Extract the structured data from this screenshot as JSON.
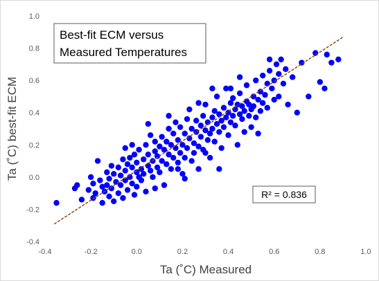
{
  "chart_data": {
    "type": "scatter",
    "title": "Best-fit ECM versus Measured Temperatures",
    "title_lines": [
      "Best-fit ECM versus",
      "Measured Temperatures"
    ],
    "xlabel": "Ta (˚C) Measured",
    "ylabel": "Ta (˚C) best-fit ECM",
    "xlim": [
      -0.4,
      1.0
    ],
    "ylim": [
      -0.4,
      1.0
    ],
    "x_ticks": [
      "-0.4",
      "-0.2",
      "0.0",
      "0.2",
      "0.4",
      "0.6",
      "0.8",
      "1.0"
    ],
    "y_ticks": [
      "-0.4",
      "-0.2",
      "0.0",
      "0.2",
      "0.4",
      "0.6",
      "0.8",
      "1.0"
    ],
    "grid": false,
    "trendline": {
      "slope": 0.92,
      "intercept": 0.04,
      "x_range": [
        -0.36,
        0.9
      ],
      "style": "dashed",
      "color": "#8B4513"
    },
    "r_squared_label": "R² = 0.836",
    "marker_color": "#0000FF",
    "points": [
      [
        -0.35,
        -0.16
      ],
      [
        -0.27,
        -0.07
      ],
      [
        -0.26,
        -0.05
      ],
      [
        -0.24,
        -0.14
      ],
      [
        -0.21,
        -0.08
      ],
      [
        -0.2,
        0.0
      ],
      [
        -0.19,
        -0.04
      ],
      [
        -0.19,
        -0.13
      ],
      [
        -0.18,
        -0.1
      ],
      [
        -0.17,
        0.1
      ],
      [
        -0.16,
        -0.02
      ],
      [
        -0.15,
        -0.06
      ],
      [
        -0.15,
        -0.16
      ],
      [
        -0.14,
        -0.09
      ],
      [
        -0.13,
        0.03
      ],
      [
        -0.13,
        -0.05
      ],
      [
        -0.12,
        -0.12
      ],
      [
        -0.12,
        -0.01
      ],
      [
        -0.11,
        0.07
      ],
      [
        -0.11,
        -0.07
      ],
      [
        -0.1,
        -0.15
      ],
      [
        -0.1,
        0.02
      ],
      [
        -0.09,
        -0.03
      ],
      [
        -0.08,
        0.06
      ],
      [
        -0.08,
        -0.1
      ],
      [
        -0.07,
        0.01
      ],
      [
        -0.07,
        -0.05
      ],
      [
        -0.06,
        0.11
      ],
      [
        -0.06,
        -0.13
      ],
      [
        -0.05,
        0.04
      ],
      [
        -0.05,
        -0.02
      ],
      [
        -0.04,
        0.08
      ],
      [
        -0.04,
        -0.08
      ],
      [
        -0.03,
        0.0
      ],
      [
        -0.03,
        0.12
      ],
      [
        -0.02,
        -0.04
      ],
      [
        -0.02,
        0.06
      ],
      [
        -0.01,
        0.14
      ],
      [
        -0.01,
        -0.11
      ],
      [
        0.0,
        0.03
      ],
      [
        0.0,
        0.09
      ],
      [
        0.0,
        -0.06
      ],
      [
        0.01,
        0.0
      ],
      [
        0.01,
        0.17
      ],
      [
        0.02,
        0.05
      ],
      [
        0.02,
        -0.02
      ],
      [
        0.03,
        0.11
      ],
      [
        0.03,
        0.02
      ],
      [
        0.04,
        0.2
      ],
      [
        0.04,
        -0.09
      ],
      [
        0.05,
        0.07
      ],
      [
        0.05,
        0.14
      ],
      [
        0.06,
        0.04
      ],
      [
        0.06,
        0.26
      ],
      [
        0.07,
        0.1
      ],
      [
        0.07,
        0.0
      ],
      [
        0.08,
        0.16
      ],
      [
        0.08,
        0.22
      ],
      [
        0.09,
        0.06
      ],
      [
        0.09,
        0.13
      ],
      [
        0.1,
        0.19
      ],
      [
        0.1,
        0.03
      ],
      [
        0.11,
        0.25
      ],
      [
        0.11,
        0.1
      ],
      [
        0.12,
        0.17
      ],
      [
        0.12,
        -0.05
      ],
      [
        0.13,
        0.22
      ],
      [
        0.13,
        0.08
      ],
      [
        0.14,
        0.14
      ],
      [
        0.14,
        0.3
      ],
      [
        0.15,
        0.2
      ],
      [
        0.15,
        0.05
      ],
      [
        0.16,
        0.12
      ],
      [
        0.16,
        0.27
      ],
      [
        0.17,
        0.18
      ],
      [
        0.17,
        0.34
      ],
      [
        0.18,
        0.09
      ],
      [
        0.18,
        0.23
      ],
      [
        0.19,
        0.15
      ],
      [
        0.19,
        0.31
      ],
      [
        0.2,
        0.2
      ],
      [
        0.2,
        0.02
      ],
      [
        0.21,
        0.27
      ],
      [
        0.21,
        0.12
      ],
      [
        0.22,
        0.36
      ],
      [
        0.22,
        0.18
      ],
      [
        0.23,
        0.24
      ],
      [
        0.23,
        0.42
      ],
      [
        0.24,
        0.1
      ],
      [
        0.24,
        0.3
      ],
      [
        0.25,
        0.21
      ],
      [
        0.25,
        0.15
      ],
      [
        0.26,
        0.28
      ],
      [
        0.26,
        0.35
      ],
      [
        0.27,
        0.19
      ],
      [
        0.27,
        0.05
      ],
      [
        0.28,
        0.32
      ],
      [
        0.28,
        0.25
      ],
      [
        0.29,
        0.38
      ],
      [
        0.29,
        0.17
      ],
      [
        0.3,
        0.29
      ],
      [
        0.3,
        0.45
      ],
      [
        0.31,
        0.23
      ],
      [
        0.31,
        0.34
      ],
      [
        0.32,
        0.27
      ],
      [
        0.32,
        0.12
      ],
      [
        0.33,
        0.37
      ],
      [
        0.33,
        0.3
      ],
      [
        0.34,
        0.41
      ],
      [
        0.34,
        0.22
      ],
      [
        0.35,
        0.33
      ],
      [
        0.35,
        0.5
      ],
      [
        0.36,
        0.28
      ],
      [
        0.36,
        0.39
      ],
      [
        0.37,
        0.35
      ],
      [
        0.37,
        0.18
      ],
      [
        0.38,
        0.43
      ],
      [
        0.38,
        0.31
      ],
      [
        0.39,
        0.37
      ],
      [
        0.39,
        0.55
      ],
      [
        0.4,
        0.4
      ],
      [
        0.4,
        0.26
      ],
      [
        0.41,
        0.46
      ],
      [
        0.41,
        0.34
      ],
      [
        0.42,
        0.38
      ],
      [
        0.42,
        0.49
      ],
      [
        0.43,
        0.32
      ],
      [
        0.43,
        0.42
      ],
      [
        0.44,
        0.45
      ],
      [
        0.44,
        0.2
      ],
      [
        0.45,
        0.39
      ],
      [
        0.45,
        0.52
      ],
      [
        0.46,
        0.36
      ],
      [
        0.46,
        0.44
      ],
      [
        0.47,
        0.41
      ],
      [
        0.47,
        0.28
      ],
      [
        0.48,
        0.47
      ],
      [
        0.48,
        0.57
      ],
      [
        0.49,
        0.38
      ],
      [
        0.49,
        0.45
      ],
      [
        0.5,
        0.42
      ],
      [
        0.5,
        0.31
      ],
      [
        0.51,
        0.5
      ],
      [
        0.51,
        0.44
      ],
      [
        0.52,
        0.6
      ],
      [
        0.52,
        0.37
      ],
      [
        0.53,
        0.48
      ],
      [
        0.54,
        0.53
      ],
      [
        0.54,
        0.41
      ],
      [
        0.55,
        0.63
      ],
      [
        0.55,
        0.46
      ],
      [
        0.56,
        0.51
      ],
      [
        0.57,
        0.58
      ],
      [
        0.57,
        0.43
      ],
      [
        0.58,
        0.66
      ],
      [
        0.59,
        0.55
      ],
      [
        0.6,
        0.6
      ],
      [
        0.6,
        0.48
      ],
      [
        0.61,
        0.7
      ],
      [
        0.62,
        0.64
      ],
      [
        0.63,
        0.73
      ],
      [
        0.64,
        0.58
      ],
      [
        0.65,
        0.67
      ],
      [
        0.66,
        0.45
      ],
      [
        0.68,
        0.62
      ],
      [
        0.7,
        0.4
      ],
      [
        0.72,
        0.71
      ],
      [
        0.75,
        0.5
      ],
      [
        0.8,
        0.59
      ],
      [
        0.82,
        0.55
      ],
      [
        0.83,
        0.76
      ],
      [
        0.85,
        0.71
      ],
      [
        0.88,
        0.73
      ],
      [
        0.78,
        0.77
      ],
      [
        0.41,
        0.55
      ],
      [
        0.36,
        0.05
      ],
      [
        0.3,
        0.15
      ],
      [
        0.18,
        0.05
      ],
      [
        0.05,
        0.33
      ],
      [
        -0.05,
        0.18
      ],
      [
        0.14,
        0.38
      ],
      [
        0.27,
        0.46
      ],
      [
        0.45,
        0.62
      ],
      [
        0.58,
        0.73
      ],
      [
        0.62,
        0.5
      ],
      [
        0.53,
        0.27
      ],
      [
        0.21,
        -0.01
      ],
      [
        0.08,
        -0.07
      ],
      [
        -0.02,
        0.2
      ],
      [
        0.33,
        0.55
      ]
    ]
  }
}
